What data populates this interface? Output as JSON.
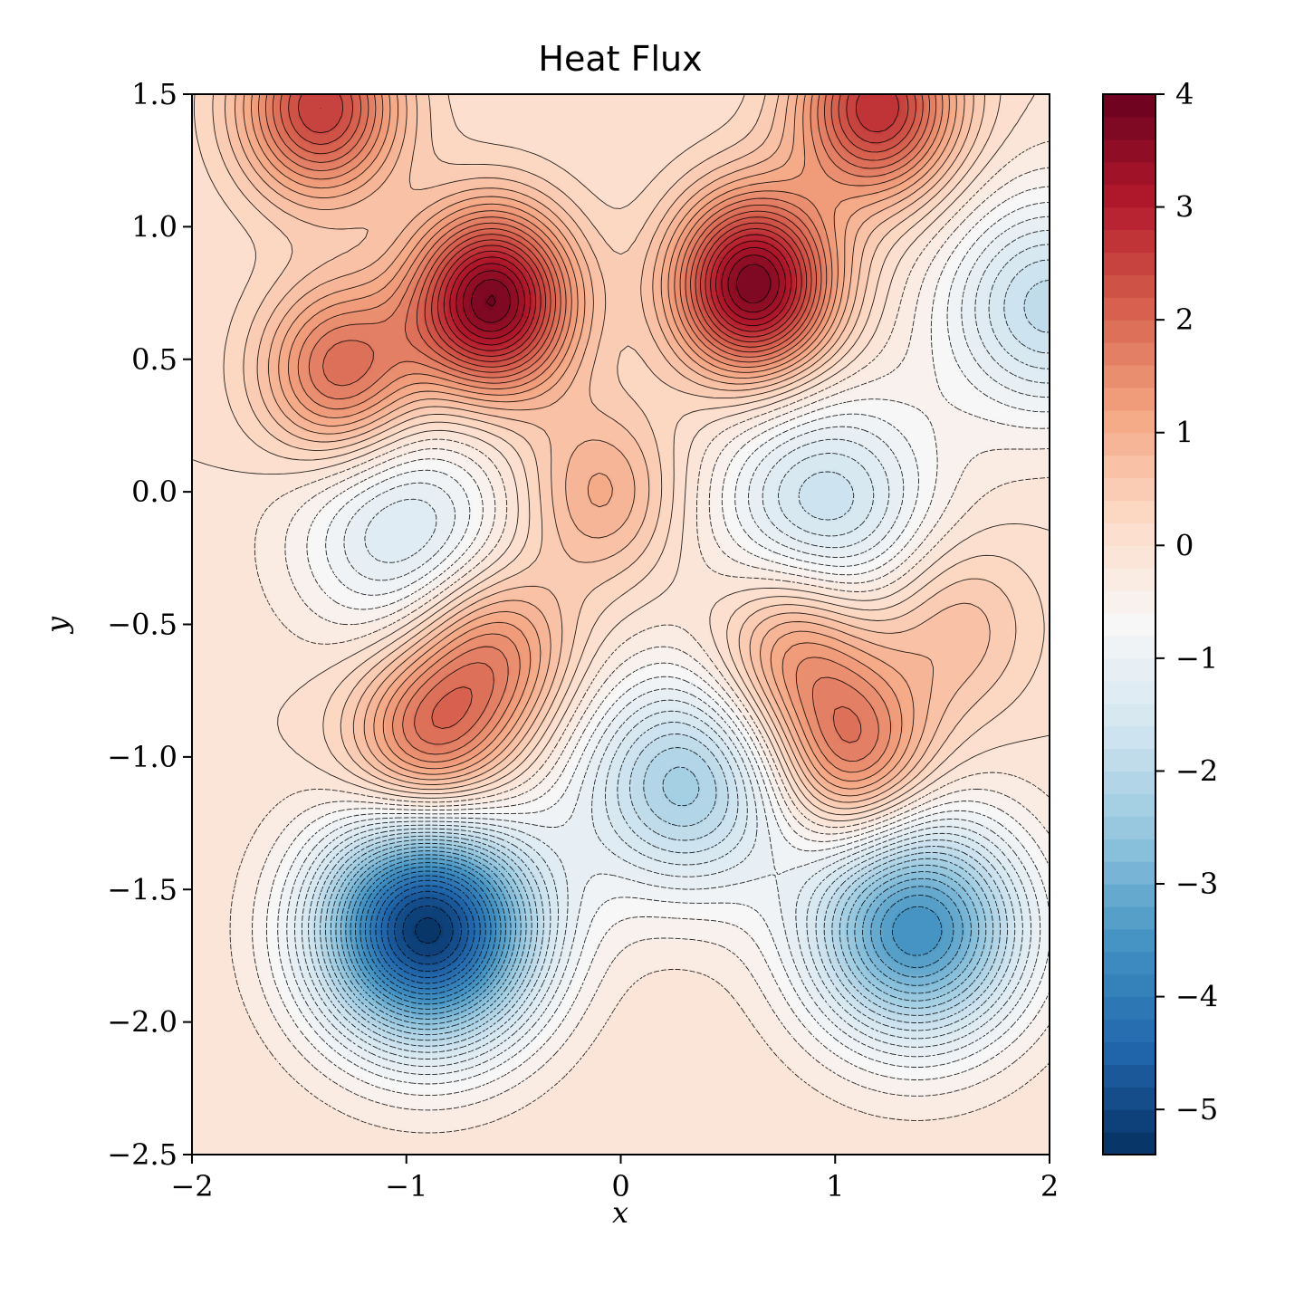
{
  "chart_data": {
    "type": "heatmap",
    "subtype": "filled-contour",
    "title": "Heat Flux",
    "xlabel": "x",
    "ylabel": "y",
    "xlim": [
      -2,
      2
    ],
    "ylim": [
      -2.5,
      1.5
    ],
    "x_ticks": [
      -2,
      -1,
      0,
      1,
      2
    ],
    "x_tick_labels": [
      "−2",
      "−1",
      "0",
      "1",
      "2"
    ],
    "y_ticks": [
      1.5,
      1.0,
      0.5,
      0.0,
      -0.5,
      -1.0,
      -1.5,
      -2.0,
      -2.5
    ],
    "y_tick_labels": [
      "1.5",
      "1.0",
      "0.5",
      "0.0",
      "−0.5",
      "−1.0",
      "−1.5",
      "−2.0",
      "−2.5"
    ],
    "colormap": "RdBu_r",
    "colorbar": {
      "range": [
        -5.4,
        4
      ],
      "ticks": [
        4,
        3,
        2,
        1,
        0,
        -1,
        -2,
        -3,
        -4,
        -5
      ],
      "tick_labels": [
        "4",
        "3",
        "2",
        "1",
        "0",
        "−1",
        "−2",
        "−3",
        "−4",
        "−5"
      ]
    },
    "contour_lines": "black, solid for positive levels, dashed for negative levels",
    "features": [
      {
        "kind": "max",
        "x": -0.6,
        "y": 0.72,
        "value": 3.8
      },
      {
        "kind": "max",
        "x": 0.62,
        "y": 0.78,
        "value": 3.8
      },
      {
        "kind": "max",
        "x": -1.3,
        "y": 0.45,
        "value": 2.0
      },
      {
        "kind": "max",
        "x": -1.4,
        "y": 1.45,
        "value": 2.6
      },
      {
        "kind": "max",
        "x": 1.2,
        "y": 1.45,
        "value": 2.8
      },
      {
        "kind": "max",
        "x": 1.55,
        "y": -0.5,
        "value": 0.8
      },
      {
        "kind": "max",
        "x": -0.6,
        "y": -0.6,
        "value": 1.6
      },
      {
        "kind": "max",
        "x": 0.8,
        "y": -0.6,
        "value": 1.5
      },
      {
        "kind": "max",
        "x": -0.9,
        "y": -0.95,
        "value": 1.9
      },
      {
        "kind": "max",
        "x": 1.08,
        "y": -1.0,
        "value": 1.9
      },
      {
        "kind": "max",
        "x": -0.1,
        "y": 0.0,
        "value": 1.1
      },
      {
        "kind": "min",
        "x": -0.9,
        "y": -1.65,
        "value": -5.3
      },
      {
        "kind": "min",
        "x": 1.38,
        "y": -1.65,
        "value": -3.6
      },
      {
        "kind": "min",
        "x": 0.3,
        "y": -1.1,
        "value": -2.3
      },
      {
        "kind": "min",
        "x": 0.95,
        "y": -0.05,
        "value": -1.8
      },
      {
        "kind": "min",
        "x": -1.0,
        "y": -0.15,
        "value": -1.5
      },
      {
        "kind": "min",
        "x": 2.0,
        "y": 0.7,
        "value": -1.9
      }
    ]
  },
  "colors": {
    "cmap_stops": [
      "#053061",
      "#2166ac",
      "#4393c3",
      "#92c5de",
      "#d1e5f0",
      "#f7f7f7",
      "#fddbc7",
      "#f4a582",
      "#d6604d",
      "#b2182b",
      "#67001f"
    ],
    "axes": "#000000",
    "contour_line": "#000000"
  }
}
